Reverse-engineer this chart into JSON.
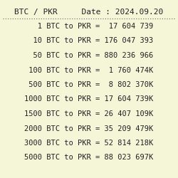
{
  "title": "BTC / PKR     Date : 2024.09.20",
  "background_color": "#f5f5d8",
  "rows": [
    {
      "label": "   1 BTC to PKR =",
      "value": "  17 604 739"
    },
    {
      "label": "  10 BTC to PKR =",
      "value": " 176 047 393"
    },
    {
      "label": "  50 BTC to PKR =",
      "value": " 880 236 966"
    },
    {
      "label": " 100 BTC to PKR =",
      "value": "  1 760 474K"
    },
    {
      "label": " 500 BTC to PKR =",
      "value": "  8 802 370K"
    },
    {
      "label": "1000 BTC to PKR =",
      "value": " 17 604 739K"
    },
    {
      "label": "1500 BTC to PKR =",
      "value": " 26 407 109K"
    },
    {
      "label": "2000 BTC to PKR =",
      "value": " 35 209 479K"
    },
    {
      "label": "3000 BTC to PKR =",
      "value": " 52 814 218K"
    },
    {
      "label": "5000 BTC to PKR =",
      "value": " 88 023 697K"
    }
  ],
  "font_family": "monospace",
  "title_fontsize": 8.0,
  "row_fontsize": 7.5,
  "text_color": "#222222",
  "separator_color": "#666666",
  "fig_width": 2.5,
  "fig_height": 2.5,
  "dpi": 100
}
